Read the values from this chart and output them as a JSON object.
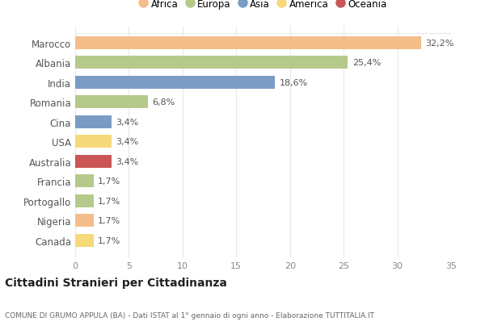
{
  "categories": [
    "Marocco",
    "Albania",
    "India",
    "Romania",
    "Cina",
    "USA",
    "Australia",
    "Francia",
    "Portogallo",
    "Nigeria",
    "Canada"
  ],
  "values": [
    32.2,
    25.4,
    18.6,
    6.8,
    3.4,
    3.4,
    3.4,
    1.7,
    1.7,
    1.7,
    1.7
  ],
  "labels": [
    "32,2%",
    "25,4%",
    "18,6%",
    "6,8%",
    "3,4%",
    "3,4%",
    "3,4%",
    "1,7%",
    "1,7%",
    "1,7%",
    "1,7%"
  ],
  "colors": [
    "#F4BE8A",
    "#B5C98A",
    "#7A9CC4",
    "#B5C98A",
    "#7A9CC4",
    "#F5D97A",
    "#C95555",
    "#B5C98A",
    "#B5C98A",
    "#F4BE8A",
    "#F5D97A"
  ],
  "continents": [
    "Africa",
    "Europa",
    "Asia",
    "America",
    "Oceania"
  ],
  "legend_colors": [
    "#F4BE8A",
    "#B5C98A",
    "#7A9CC4",
    "#F5D97A",
    "#C95555"
  ],
  "title": "Cittadini Stranieri per Cittadinanza",
  "subtitle": "COMUNE DI GRUMO APPULA (BA) - Dati ISTAT al 1° gennaio di ogni anno - Elaborazione TUTTITALIA.IT",
  "xlim": [
    0,
    35
  ],
  "xticks": [
    0,
    5,
    10,
    15,
    20,
    25,
    30,
    35
  ],
  "background_color": "#ffffff",
  "grid_color": "#e8e8e8",
  "bar_height": 0.65
}
